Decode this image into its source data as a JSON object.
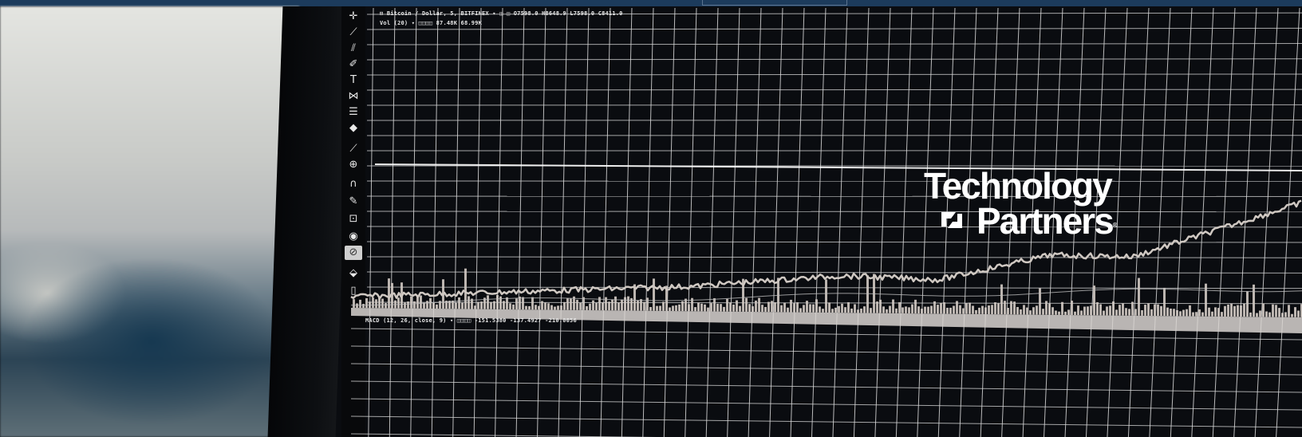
{
  "logo": {
    "line1": "Technology",
    "line2": "Partners",
    "registered": "®",
    "color": "#ffffff"
  },
  "screen": {
    "legend_top": "⊟ Bitcoin / Dollar, 5, BITFINEX ▾  ◫ ◫  O7598.0  H8648.9  L7598.0  C8411.0",
    "legend_volume": "Vol (20) ▾  ◫◫◫◫  87.48K  68.99K",
    "legend_indicator": "MACD (12, 26, close, 9) ▾  ◫◫◫◫  -151.5380  -137.4927  -210.0056",
    "colors": {
      "background": "#0a0c10",
      "grid": "#d9d9d9",
      "price_line": "#cfc8c2",
      "top_bar": "#1c3b5c"
    }
  },
  "toolbar": {
    "tools": [
      {
        "name": "crosshair-icon",
        "glyph": "✛"
      },
      {
        "name": "trend-line-icon",
        "glyph": "⟋"
      },
      {
        "name": "pitchfork-icon",
        "glyph": "⫽"
      },
      {
        "name": "brush-icon",
        "glyph": "✐"
      },
      {
        "name": "text-tool-icon",
        "glyph": "T"
      },
      {
        "name": "pattern-icon",
        "glyph": "⋈"
      },
      {
        "name": "fib-retracement-icon",
        "glyph": "☰"
      },
      {
        "name": "shapes-icon",
        "glyph": "◆"
      },
      {
        "name": "measure-ruler-icon",
        "glyph": "⟋"
      },
      {
        "name": "zoom-in-icon",
        "glyph": "⊕"
      },
      {
        "name": "magnet-icon",
        "glyph": "∩"
      },
      {
        "name": "stay-in-drawing-icon",
        "glyph": "✎"
      },
      {
        "name": "lock-icon",
        "glyph": "⊡"
      },
      {
        "name": "eye-icon",
        "glyph": "◉"
      },
      {
        "name": "active-tool-icon",
        "glyph": "⊘"
      },
      {
        "name": "layers-icon",
        "glyph": "⬙"
      },
      {
        "name": "trash-icon",
        "glyph": "▯"
      }
    ]
  }
}
